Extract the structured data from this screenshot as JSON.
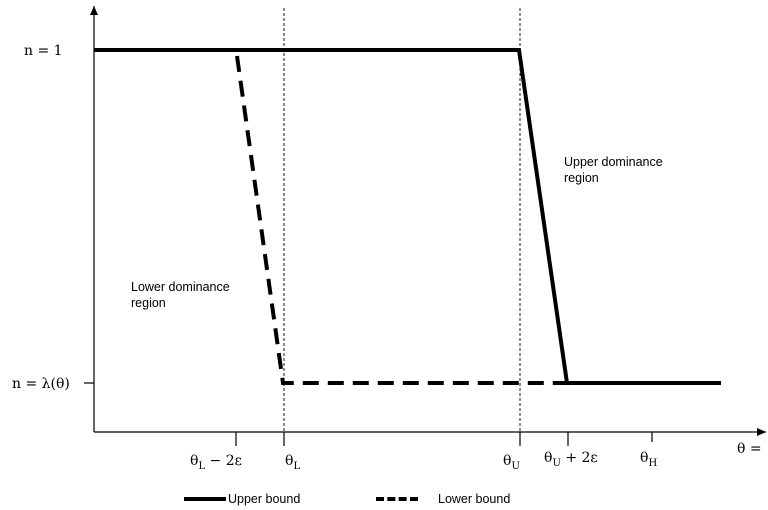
{
  "y_labels": {
    "top": "n = 1",
    "bottom": "n = λ(θ)"
  },
  "x_labels": {
    "theta_l_minus": {
      "base": "θ",
      "sub": "L",
      "suffix": " − 2ε"
    },
    "theta_l": {
      "base": "θ",
      "sub": "L",
      "suffix": ""
    },
    "theta_u": {
      "base": "θ",
      "sub": "U",
      "suffix": ""
    },
    "theta_u_plus": {
      "base": "θ",
      "sub": "U",
      "suffix": " + 2ε"
    },
    "theta_h": {
      "base": "θ",
      "sub": "H",
      "suffix": ""
    },
    "axis": "θ ="
  },
  "regions": {
    "upper_line1": "Upper dominance",
    "upper_line2": "region",
    "lower_line1": "Lower dominance",
    "lower_line2": "region"
  },
  "legend": {
    "upper": "Upper bound",
    "lower": "Lower bound"
  },
  "colors": {
    "ink": "#000000",
    "background": "#ffffff"
  }
}
